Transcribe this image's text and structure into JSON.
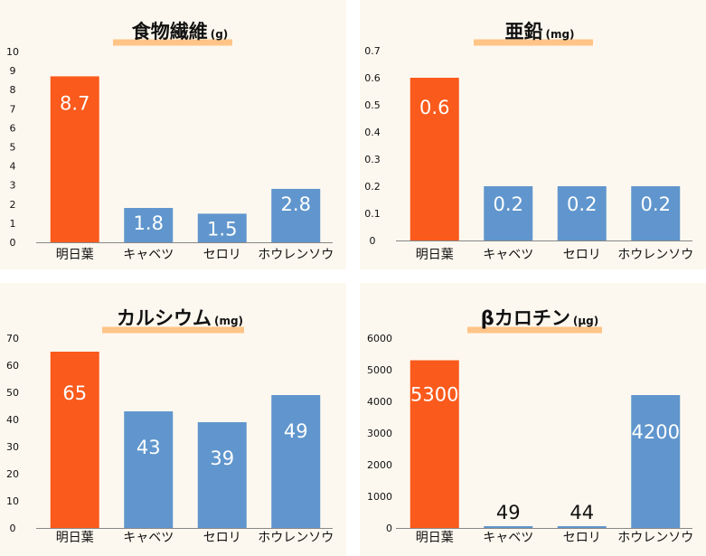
{
  "colors": {
    "highlight": "#fa5a1c",
    "normal": "#6096cd",
    "underline": "#ffc487",
    "panel_bg": "#fdf8ef"
  },
  "chart_data": [
    {
      "type": "bar",
      "title": "食物繊維",
      "unit": "(g)",
      "categories": [
        "明日葉",
        "キャベツ",
        "セロリ",
        "ホウレンソウ"
      ],
      "values": [
        8.7,
        1.8,
        1.5,
        2.8
      ],
      "labels": [
        "8.7",
        "1.8",
        "1.5",
        "2.8"
      ],
      "yticks": [
        "0",
        "1",
        "2",
        "3",
        "4",
        "5",
        "6",
        "7",
        "8",
        "9",
        "10"
      ],
      "ylim": [
        0,
        10
      ],
      "grid": false,
      "highlight_index": 0
    },
    {
      "type": "bar",
      "title": "亜鉛",
      "unit": "(mg)",
      "categories": [
        "明日葉",
        "キャベツ",
        "セロリ",
        "ホウレンソウ"
      ],
      "values": [
        0.6,
        0.2,
        0.2,
        0.2
      ],
      "labels": [
        "0.6",
        "0.2",
        "0.2",
        "0.2"
      ],
      "yticks": [
        "0",
        "0.1",
        "0.2",
        "0.3",
        "0.4",
        "0.5",
        "0.6",
        "0.7"
      ],
      "ylim": [
        0,
        0.7
      ],
      "grid": false,
      "highlight_index": 0
    },
    {
      "type": "bar",
      "title": "カルシウム",
      "unit": "(mg)",
      "categories": [
        "明日葉",
        "キャベツ",
        "セロリ",
        "ホウレンソウ"
      ],
      "values": [
        65,
        43,
        39,
        49
      ],
      "labels": [
        "65",
        "43",
        "39",
        "49"
      ],
      "yticks": [
        "0",
        "10",
        "20",
        "30",
        "40",
        "50",
        "60",
        "70"
      ],
      "ylim": [
        0,
        70
      ],
      "grid": false,
      "highlight_index": 0
    },
    {
      "type": "bar",
      "title": "βカロチン",
      "unit": "(μg)",
      "categories": [
        "明日葉",
        "キャベツ",
        "セロリ",
        "ホウレンソウ"
      ],
      "values": [
        5300,
        49,
        44,
        4200
      ],
      "labels": [
        "5300",
        "49",
        "44",
        "4200"
      ],
      "yticks": [
        "0",
        "1000",
        "2000",
        "3000",
        "4000",
        "5000",
        "6000"
      ],
      "ylim": [
        0,
        6000
      ],
      "grid": false,
      "highlight_index": 0
    }
  ]
}
